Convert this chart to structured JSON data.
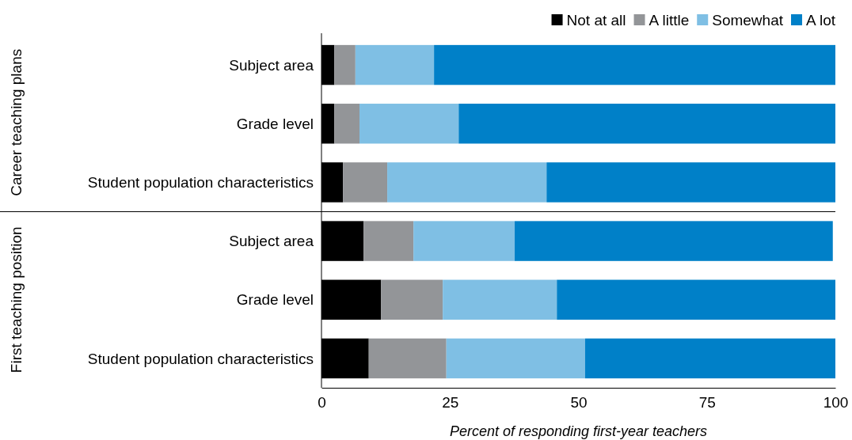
{
  "chart_data": {
    "type": "bar",
    "orientation": "horizontal",
    "stacked": true,
    "xlabel": "Percent of responding first-year teachers",
    "categories": [
      "Subject area",
      "Grade level",
      "Student population characteristics",
      "Subject area",
      "Grade level",
      "Student population characteristics"
    ],
    "series": [
      {
        "name": "Not at all",
        "color": "#000000",
        "values": [
          2.5,
          2.5,
          4.2,
          8.2,
          11.6,
          9.2
        ]
      },
      {
        "name": "A little",
        "color": "#939598",
        "values": [
          4.1,
          4.9,
          8.6,
          9.7,
          12.0,
          15.1
        ]
      },
      {
        "name": "Somewhat",
        "color": "#7fbfe4",
        "values": [
          15.3,
          19.3,
          31.0,
          19.7,
          22.2,
          27.0
        ]
      },
      {
        "name": "A lot",
        "color": "#0080c8",
        "values": [
          78.1,
          73.3,
          56.2,
          61.9,
          54.2,
          48.7
        ]
      }
    ],
    "xlim": [
      0,
      100
    ],
    "xticks": [
      0,
      25,
      50,
      75,
      100
    ],
    "grid": false,
    "legend": "top right",
    "annotations": [
      "Career teaching plans",
      "First teaching position"
    ]
  }
}
